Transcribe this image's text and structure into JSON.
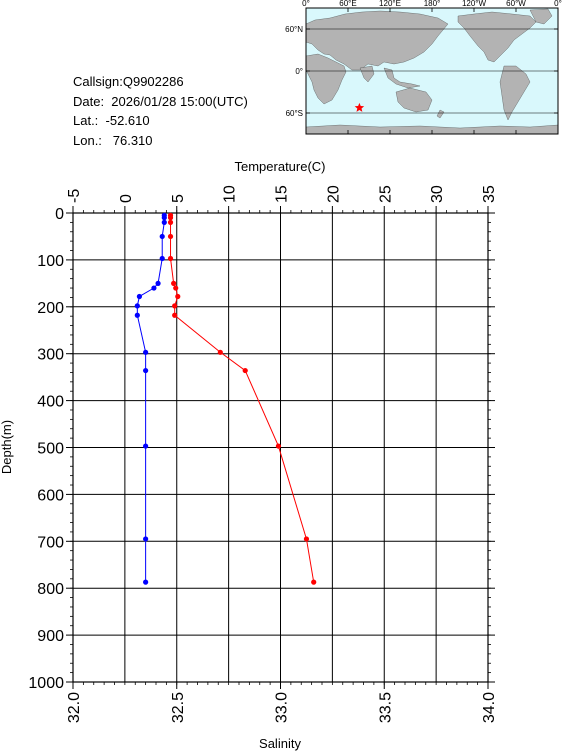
{
  "info": {
    "callsign": "Callsign:Q9902286",
    "date": "Date:  2026/01/28 15:00(UTC)",
    "lat": "Lat.:  -52.610",
    "lon": "Lon.:   76.310"
  },
  "map": {
    "lon_labels": [
      "0°",
      "60°E",
      "120°E",
      "180°",
      "120°W",
      "60°W",
      "0°"
    ],
    "lat_labels": [
      "60°N",
      "0°",
      "60°S"
    ],
    "marker": {
      "lat": -52.61,
      "lon": 76.31
    },
    "ocean_color": "#d9f8fc",
    "land_color": "#b3b3b3",
    "marker_color": "#ff0000"
  },
  "chart_data": {
    "type": "line",
    "xlabel_top": "Temperature(C)",
    "xlabel_bottom": "Salinity",
    "ylabel": "Depth(m)",
    "temp_range": [
      -5,
      35
    ],
    "temp_ticks": [
      "-5",
      "0",
      "5",
      "10",
      "15",
      "20",
      "25",
      "30",
      "35"
    ],
    "sal_range": [
      32.0,
      34.0
    ],
    "sal_ticks": [
      "32.0",
      "32.5",
      "33.0",
      "33.5",
      "34.0"
    ],
    "depth_range": [
      0,
      1000
    ],
    "depth_ticks": [
      "0",
      "100",
      "200",
      "300",
      "400",
      "500",
      "600",
      "700",
      "800",
      "900",
      "1000"
    ],
    "grid": true,
    "series": [
      {
        "name": "Temperature",
        "color": "#ff0000",
        "depth": [
          5,
          10,
          20,
          50,
          97,
          150,
          160,
          178,
          198,
          218,
          297,
          336,
          497,
          695,
          787
        ],
        "values": [
          4.4,
          4.4,
          4.4,
          4.4,
          4.4,
          4.7,
          4.9,
          5.1,
          4.8,
          4.8,
          9.2,
          11.6,
          14.8,
          17.5,
          18.2
        ]
      },
      {
        "name": "Salinity",
        "color": "#0000ff",
        "depth": [
          5,
          10,
          20,
          50,
          97,
          150,
          160,
          178,
          198,
          218,
          297,
          336,
          497,
          695,
          787
        ],
        "values": [
          32.44,
          32.44,
          32.44,
          32.43,
          32.43,
          32.41,
          32.39,
          32.32,
          32.31,
          32.31,
          32.35,
          32.35,
          32.35,
          32.35,
          32.35
        ]
      }
    ]
  }
}
